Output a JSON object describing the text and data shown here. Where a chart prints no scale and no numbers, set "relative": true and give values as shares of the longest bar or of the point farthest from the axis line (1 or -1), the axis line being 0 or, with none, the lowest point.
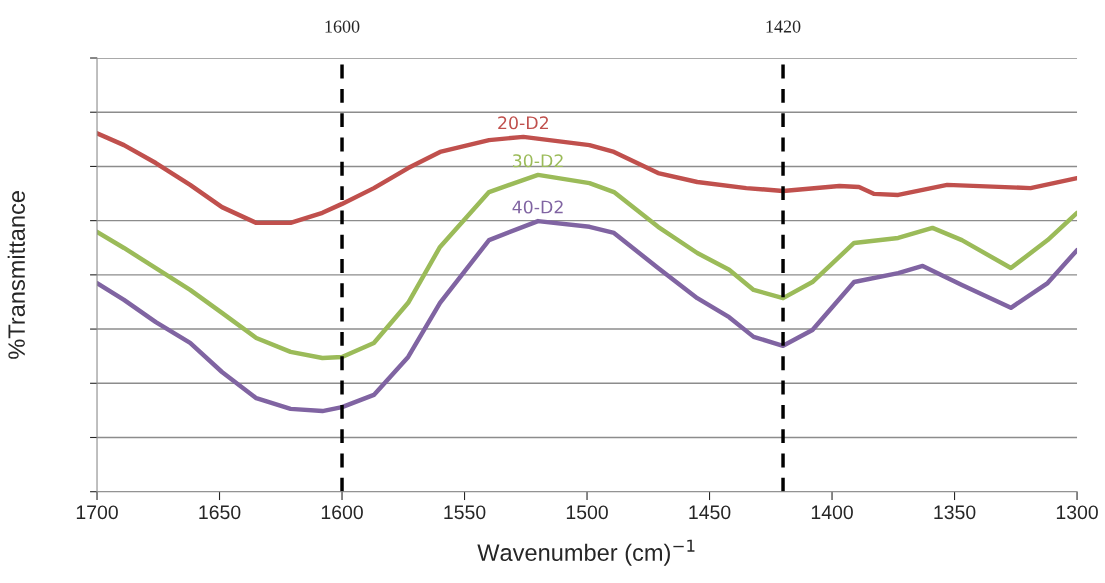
{
  "chart_data": {
    "type": "line",
    "relative": true,
    "xlabel": "Wavenumber (cm)$^{−1}$",
    "ylabel": "%Transmittance",
    "xlim": [
      1700,
      1300
    ],
    "xticks": [
      1700,
      1650,
      1600,
      1550,
      1500,
      1450,
      1400,
      1350,
      1300
    ],
    "grid": "y",
    "legend": false,
    "line_style": "solid",
    "marker": "none",
    "ref_lines": [
      {
        "axis": "x",
        "value": 1600,
        "label": "1600",
        "color": "#000000",
        "line_style": "dashed"
      },
      {
        "axis": "x",
        "value": 1420,
        "label": "1420",
        "color": "#000000",
        "line_style": "dashed"
      }
    ],
    "series": [
      {
        "name": "20-D2",
        "color": "#c0504d",
        "x": [
          1700,
          1689,
          1676,
          1662,
          1649,
          1635,
          1621,
          1608,
          1600,
          1587,
          1573,
          1560,
          1540,
          1526,
          1499,
          1489,
          1471,
          1455,
          1435,
          1420,
          1397,
          1389,
          1383,
          1373,
          1353,
          1319,
          1300
        ],
        "values": [
          1.0,
          0.967,
          0.917,
          0.856,
          0.794,
          0.75,
          0.75,
          0.778,
          0.803,
          0.847,
          0.903,
          0.948,
          0.981,
          0.99,
          0.967,
          0.948,
          0.889,
          0.864,
          0.847,
          0.839,
          0.853,
          0.85,
          0.831,
          0.828,
          0.856,
          0.847,
          0.875
        ]
      },
      {
        "name": "30-D2",
        "color": "#9bbb59",
        "x": [
          1700,
          1689,
          1676,
          1662,
          1649,
          1635,
          1621,
          1608,
          1600,
          1587,
          1573,
          1560,
          1540,
          1520,
          1499,
          1489,
          1471,
          1455,
          1442,
          1432,
          1420,
          1408,
          1391,
          1373,
          1359,
          1347,
          1327,
          1312,
          1300
        ],
        "values": [
          0.725,
          0.68,
          0.624,
          0.563,
          0.499,
          0.429,
          0.39,
          0.373,
          0.376,
          0.415,
          0.527,
          0.683,
          0.836,
          0.884,
          0.861,
          0.836,
          0.739,
          0.666,
          0.619,
          0.563,
          0.54,
          0.585,
          0.694,
          0.708,
          0.736,
          0.702,
          0.624,
          0.702,
          0.778
        ]
      },
      {
        "name": "40-D2",
        "color": "#8064a2",
        "x": [
          1700,
          1689,
          1676,
          1662,
          1649,
          1635,
          1621,
          1608,
          1600,
          1587,
          1573,
          1560,
          1540,
          1520,
          1499,
          1489,
          1471,
          1455,
          1442,
          1432,
          1420,
          1408,
          1391,
          1373,
          1363,
          1347,
          1327,
          1312,
          1300
        ],
        "values": [
          0.582,
          0.535,
          0.473,
          0.415,
          0.334,
          0.261,
          0.231,
          0.225,
          0.236,
          0.27,
          0.376,
          0.527,
          0.702,
          0.755,
          0.739,
          0.722,
          0.624,
          0.54,
          0.487,
          0.432,
          0.407,
          0.451,
          0.585,
          0.61,
          0.63,
          0.577,
          0.513,
          0.582,
          0.674
        ]
      }
    ]
  }
}
